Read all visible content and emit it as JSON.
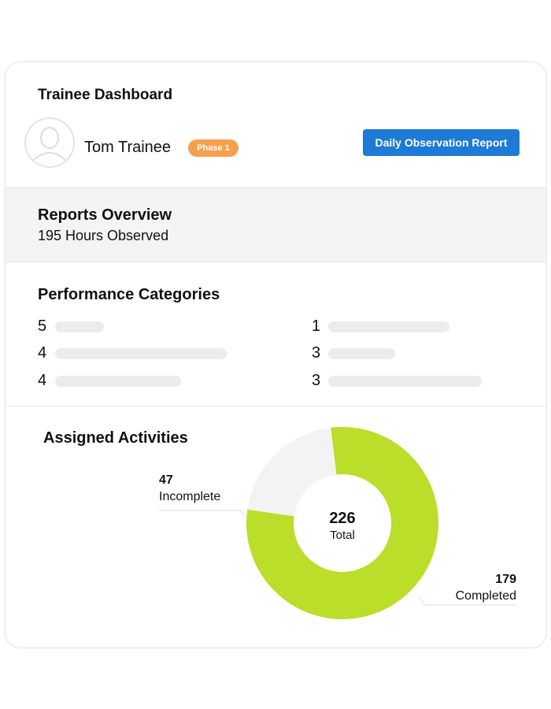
{
  "header": {
    "title": "Trainee Dashboard",
    "name": "Tom Trainee",
    "badge": "Phase 1",
    "button": "Daily Observation Report"
  },
  "reports": {
    "title": "Reports Overview",
    "subtitle": "195 Hours Observed"
  },
  "performance": {
    "title": "Performance Categories",
    "left": [
      5,
      4,
      4
    ],
    "right": [
      1,
      3,
      3
    ]
  },
  "activities": {
    "title": "Assigned Activities",
    "total": 226,
    "total_label": "Total",
    "segments": [
      {
        "label": "Completed",
        "value": 179,
        "color": "#bade2a"
      },
      {
        "label": "Incomplete",
        "value": 47,
        "color": "#f3f3f3"
      }
    ]
  }
}
